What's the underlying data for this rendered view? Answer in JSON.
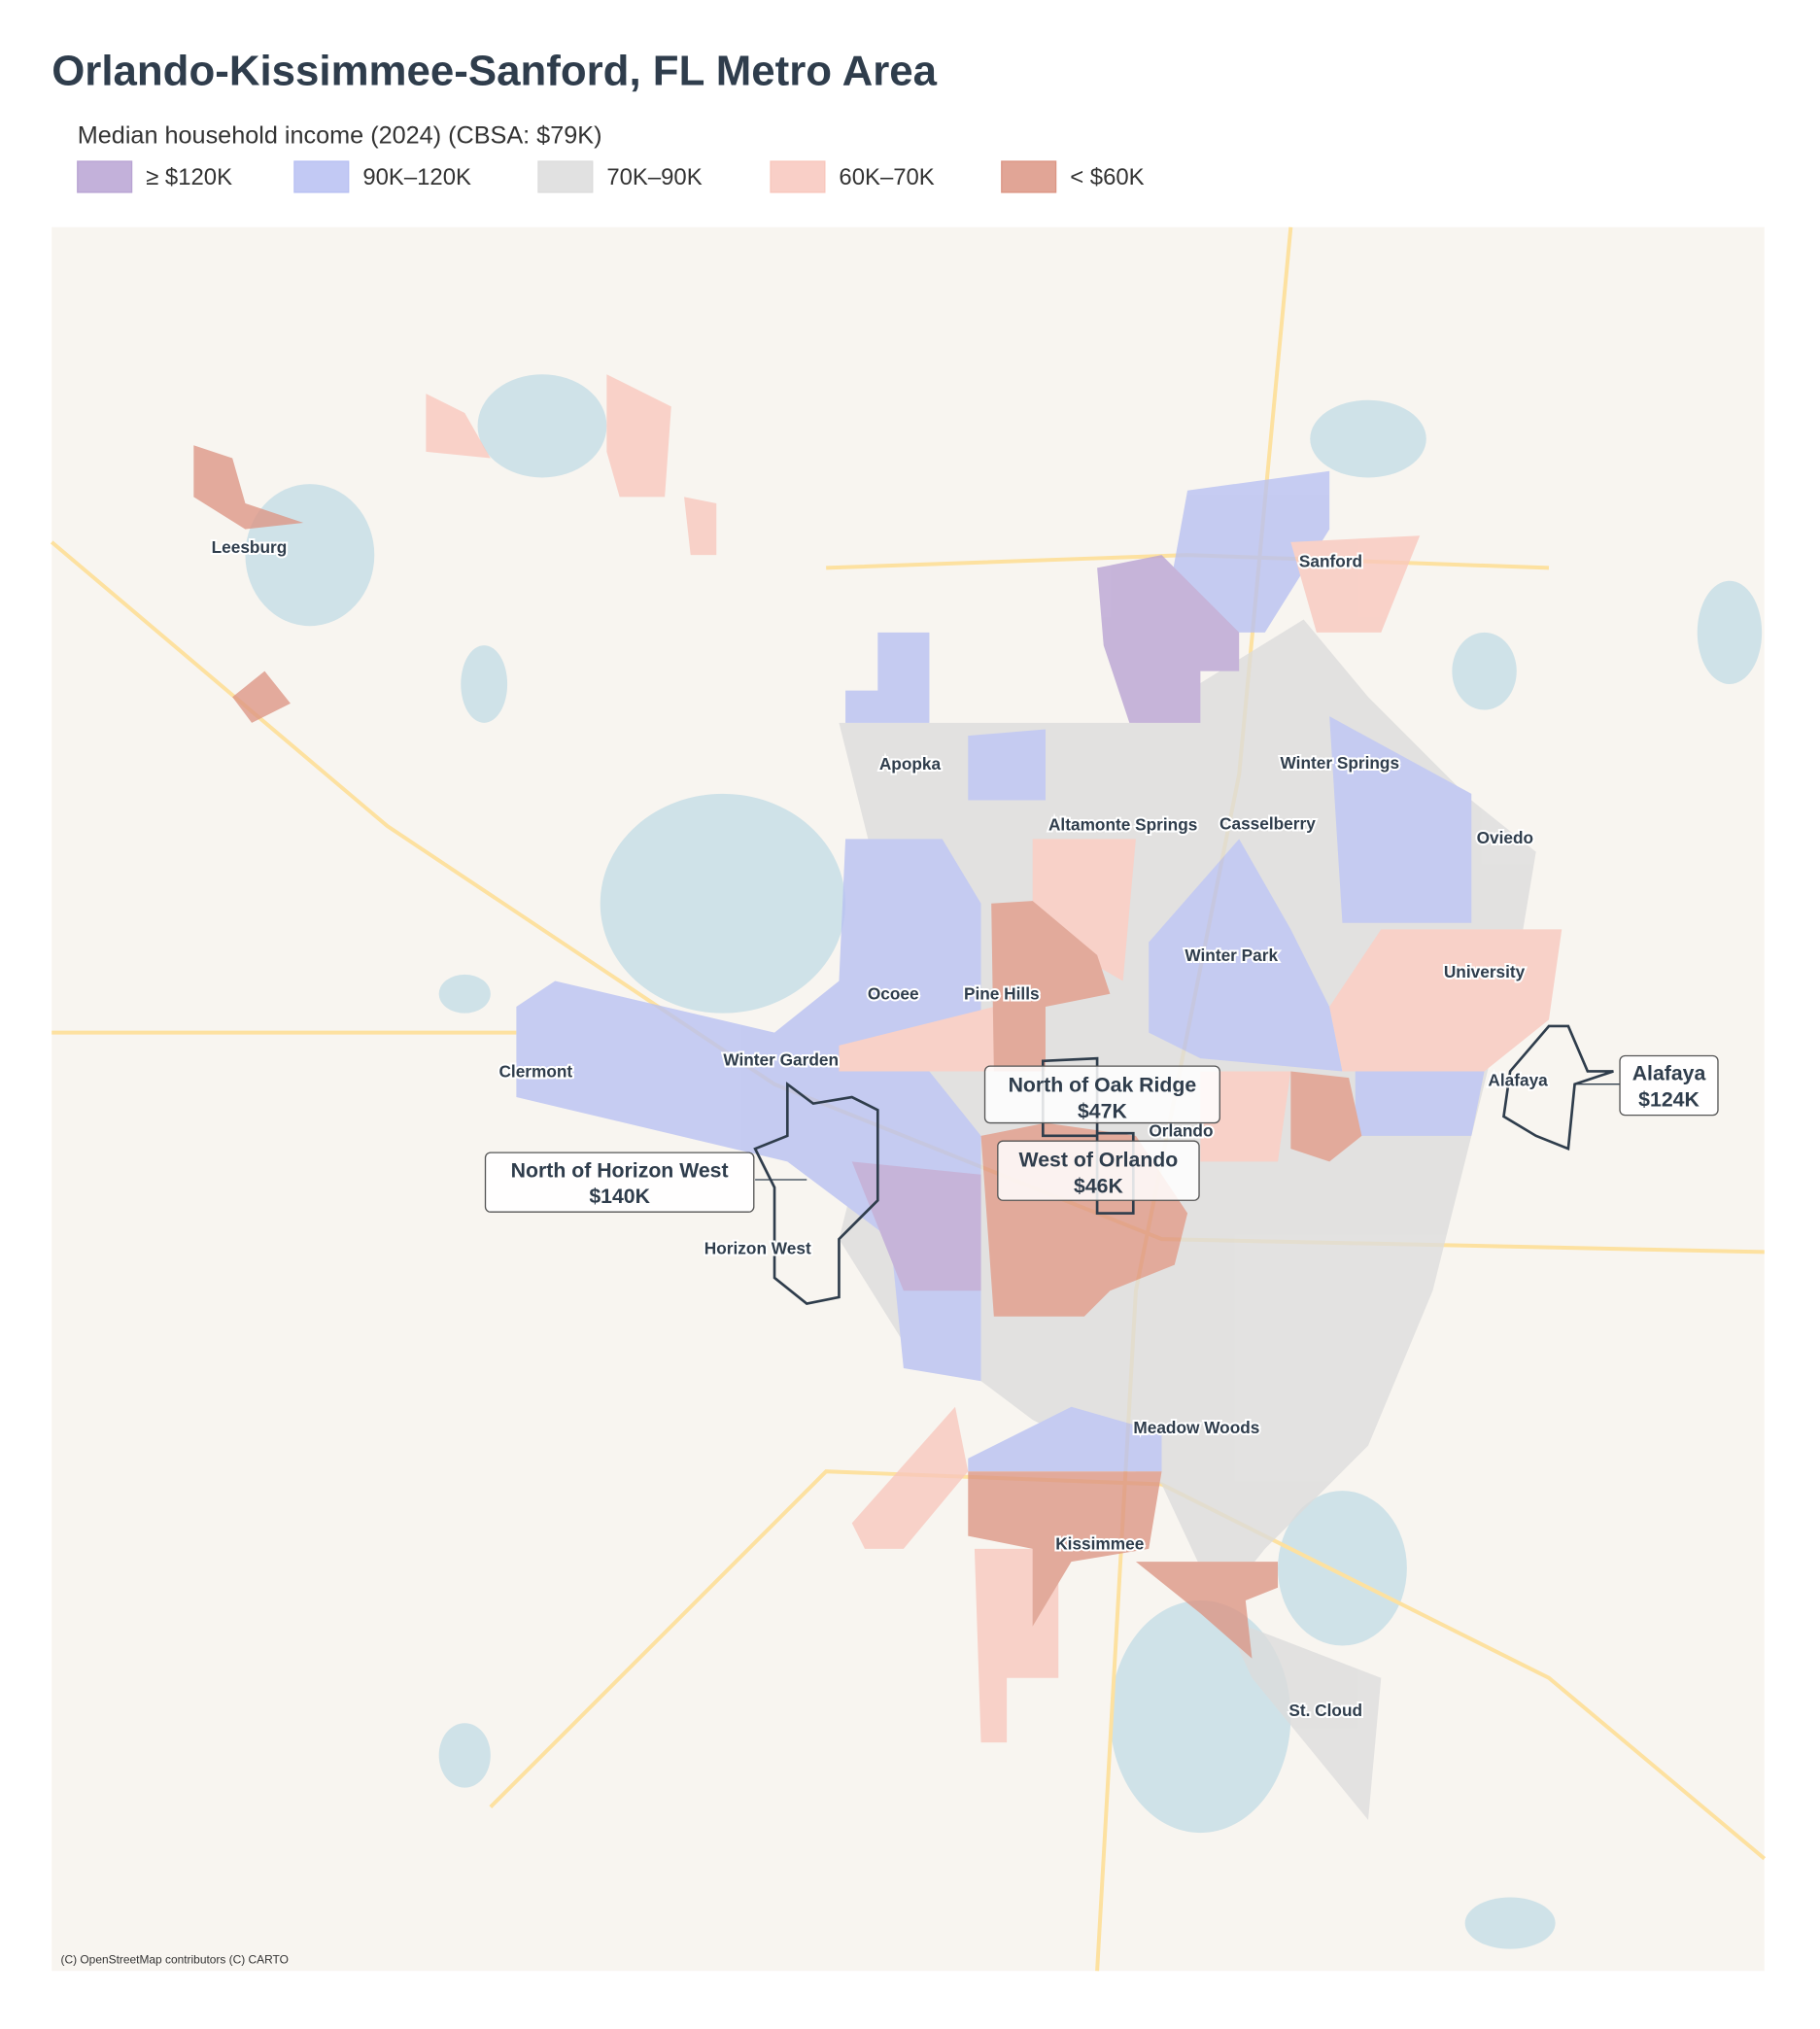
{
  "header": {
    "title": "Orlando-Kissimmee-Sanford, FL Metro Area",
    "subtitle": "Median household income (2024)  (CBSA: $79K)"
  },
  "legend": [
    {
      "label": "≥ $120K",
      "color": "#b8a3d3"
    },
    {
      "label": "90K–120K",
      "color": "#b7c0f2"
    },
    {
      "label": "70K–90K",
      "color": "#dcdcdc"
    },
    {
      "label": "60K–70K",
      "color": "#f8c7bd"
    },
    {
      "label": "< $60K",
      "color": "#dc9584"
    }
  ],
  "places": [
    "Leesburg",
    "Sanford",
    "Apopka",
    "Winter Springs",
    "Altamonte Springs",
    "Casselberry",
    "Oviedo",
    "Winter Park",
    "University",
    "Ocoee",
    "Pine Hills",
    "Winter Garden",
    "Clermont",
    "Alafaya",
    "Orlando",
    "Horizon West",
    "Meadow Woods",
    "Kissimmee",
    "St. Cloud"
  ],
  "callouts": [
    {
      "name": "North of Oak Ridge",
      "income": "$47K"
    },
    {
      "name": "West of Orlando",
      "income": "$46K"
    },
    {
      "name": "North of Horizon West",
      "income": "$140K"
    },
    {
      "name": "Alafaya",
      "income": "$124K"
    }
  ],
  "attribution": "(C) OpenStreetMap contributors (C) CARTO"
}
